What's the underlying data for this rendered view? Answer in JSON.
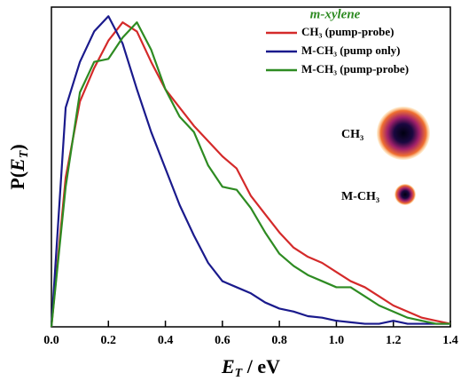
{
  "chart_data": {
    "type": "line",
    "legend_title": "m-xylene",
    "x_label": [
      "E",
      "T",
      " / eV"
    ],
    "y_label": [
      "P(",
      "E",
      "T",
      ")"
    ],
    "annotations": [
      "CH₃",
      "M-CH₃"
    ],
    "xlim": [
      0,
      1.4
    ],
    "xticks": [
      {
        "value": 0,
        "label": "0.0"
      },
      0.2,
      0.4,
      0.6,
      0.8,
      {
        "value": 1,
        "label": "1.0"
      },
      1.2,
      1.4
    ],
    "ylim": [
      0,
      1.05
    ],
    "legend": "upper right",
    "x": [
      0,
      0.05,
      0.1,
      0.15,
      0.2,
      0.25,
      0.3,
      0.35,
      0.4,
      0.45,
      0.5,
      0.55,
      0.6,
      0.65,
      0.7,
      0.75,
      0.8,
      0.85,
      0.9,
      0.95,
      1.0,
      1.05,
      1.1,
      1.15,
      1.2,
      1.25,
      1.3,
      1.35,
      1.4
    ],
    "series": [
      {
        "name": "CH₃ (pump-probe)",
        "color": "#d42a2a",
        "values": [
          0,
          0.49,
          0.74,
          0.85,
          0.94,
          1.0,
          0.97,
          0.87,
          0.78,
          0.72,
          0.66,
          0.61,
          0.56,
          0.52,
          0.43,
          0.37,
          0.31,
          0.26,
          0.23,
          0.21,
          0.18,
          0.15,
          0.13,
          0.1,
          0.07,
          0.05,
          0.03,
          0.02,
          0.01
        ]
      },
      {
        "name": "M-CH₃ (pump only)",
        "color": "#1a1a8c",
        "values": [
          0,
          0.72,
          0.87,
          0.97,
          1.02,
          0.93,
          0.78,
          0.64,
          0.52,
          0.4,
          0.3,
          0.21,
          0.15,
          0.13,
          0.11,
          0.08,
          0.06,
          0.05,
          0.035,
          0.03,
          0.02,
          0.015,
          0.01,
          0.01,
          0.02,
          0.01,
          0.01,
          0.01,
          0.01
        ]
      },
      {
        "name": "M-CH₃ (pump-probe)",
        "color": "#2e8b22",
        "values": [
          0,
          0.46,
          0.77,
          0.87,
          0.88,
          0.95,
          1.0,
          0.91,
          0.78,
          0.69,
          0.64,
          0.53,
          0.46,
          0.45,
          0.39,
          0.31,
          0.24,
          0.2,
          0.17,
          0.15,
          0.13,
          0.13,
          0.1,
          0.07,
          0.05,
          0.03,
          0.02,
          0.01,
          0.01
        ]
      }
    ]
  }
}
